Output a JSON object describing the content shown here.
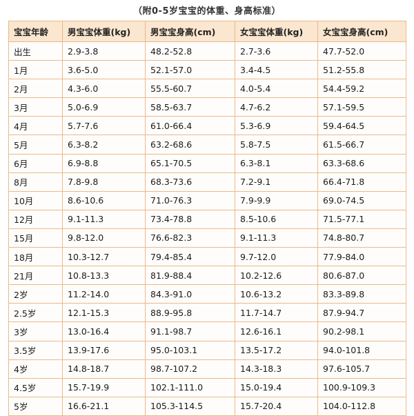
{
  "title": "（附0-5岁宝宝的体重、身高标准）",
  "colors": {
    "header_bg": "#fbe6cf",
    "border": "#e9b98c"
  },
  "table": {
    "headers": [
      "宝宝年龄",
      "男宝宝体重(kg)",
      "男宝宝身高(cm)",
      "女宝宝体重(kg)",
      "女宝宝身高(cm)"
    ],
    "rows": [
      [
        "出生",
        "2.9-3.8",
        "48.2-52.8",
        "2.7-3.6",
        "47.7-52.0"
      ],
      [
        "1月",
        "3.6-5.0",
        "52.1-57.0",
        "3.4-4.5",
        "51.2-55.8"
      ],
      [
        "2月",
        "4.3-6.0",
        "55.5-60.7",
        "4.0-5.4",
        "54.4-59.2"
      ],
      [
        "3月",
        "5.0-6.9",
        "58.5-63.7",
        "4.7-6.2",
        "57.1-59.5"
      ],
      [
        "4月",
        "5.7-7.6",
        "61.0-66.4",
        "5.3-6.9",
        "59.4-64.5"
      ],
      [
        "5月",
        "6.3-8.2",
        "63.2-68.6",
        "5.8-7.5",
        "61.5-66.7"
      ],
      [
        "6月",
        "6.9-8.8",
        "65.1-70.5",
        "6.3-8.1",
        "63.3-68.6"
      ],
      [
        "8月",
        "7.8-9.8",
        "68.3-73.6",
        "7.2-9.1",
        "66.4-71.8"
      ],
      [
        "10月",
        "8.6-10.6",
        "71.0-76.3",
        "7.9-9.9",
        "69.0-74.5"
      ],
      [
        "12月",
        "9.1-11.3",
        "73.4-78.8",
        "8.5-10.6",
        "71.5-77.1"
      ],
      [
        "15月",
        "9.8-12.0",
        "76.6-82.3",
        "9.1-11.3",
        "74.8-80.7"
      ],
      [
        "18月",
        "10.3-12.7",
        "79.4-85.4",
        "9.7-12.0",
        "77.9-84.0"
      ],
      [
        "21月",
        "10.8-13.3",
        "81.9-88.4",
        "10.2-12.6",
        "80.6-87.0"
      ],
      [
        "2岁",
        "11.2-14.0",
        "84.3-91.0",
        "10.6-13.2",
        "83.3-89.8"
      ],
      [
        "2.5岁",
        "12.1-15.3",
        "88.9-95.8",
        "11.7-14.7",
        "87.9-94.7"
      ],
      [
        "3岁",
        "13.0-16.4",
        "91.1-98.7",
        "12.6-16.1",
        "90.2-98.1"
      ],
      [
        "3.5岁",
        "13.9-17.6",
        "95.0-103.1",
        "13.5-17.2",
        "94.0-101.8"
      ],
      [
        "4岁",
        "14.8-18.7",
        "98.7-107.2",
        "14.3-18.3",
        "97.6-105.7"
      ],
      [
        "4.5岁",
        "15.7-19.9",
        "102.1-111.0",
        "15.0-19.4",
        "100.9-109.3"
      ],
      [
        "5岁",
        "16.6-21.1",
        "105.3-114.5",
        "15.7-20.4",
        "104.0-112.8"
      ]
    ]
  }
}
